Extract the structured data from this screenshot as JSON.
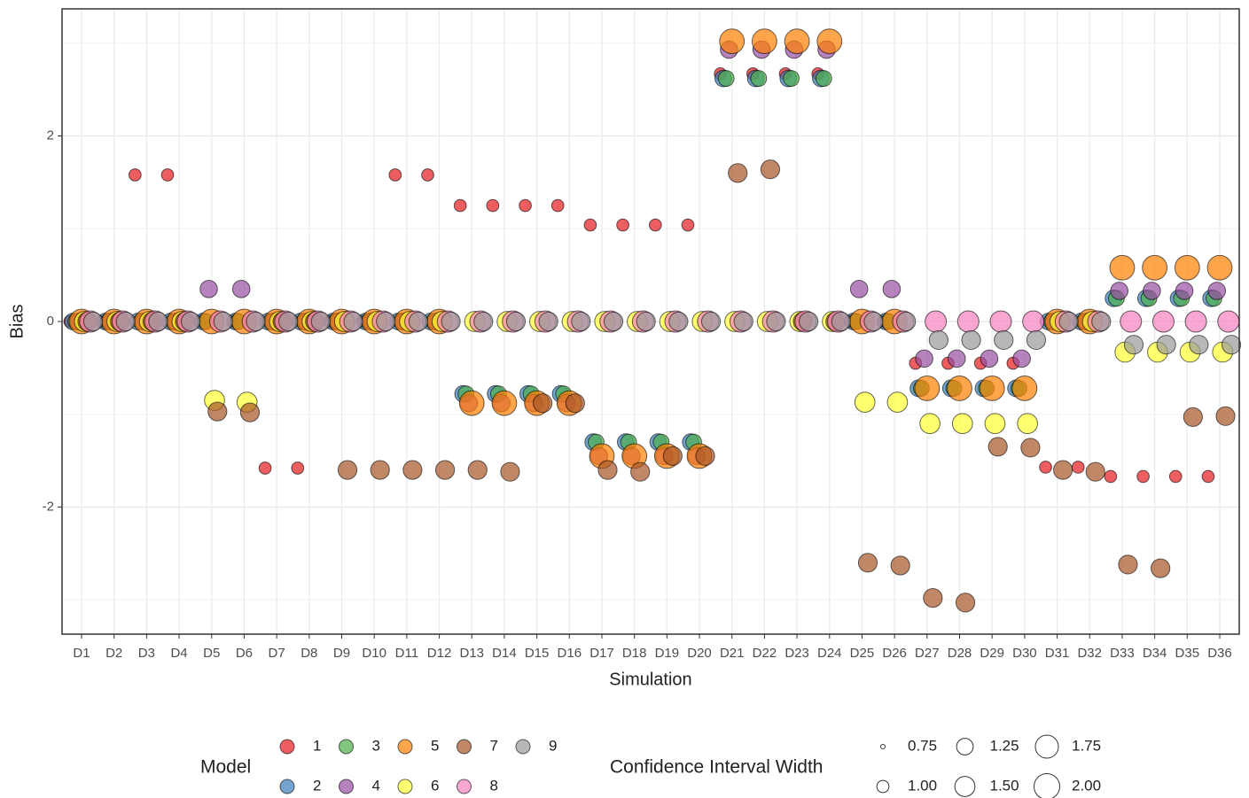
{
  "chart_data": {
    "type": "bubble",
    "x_label": "Simulation",
    "y_label": "Bias",
    "categories": [
      "D1",
      "D2",
      "D3",
      "D4",
      "D5",
      "D6",
      "D7",
      "D8",
      "D9",
      "D10",
      "D11",
      "D12",
      "D13",
      "D14",
      "D15",
      "D16",
      "D17",
      "D18",
      "D19",
      "D20",
      "D21",
      "D22",
      "D23",
      "D24",
      "D25",
      "D26",
      "D27",
      "D28",
      "D29",
      "D30",
      "D31",
      "D32",
      "D33",
      "D34",
      "D35",
      "D36"
    ],
    "ylim": [
      -3.37,
      3.37
    ],
    "yticks": [
      -2,
      0,
      2
    ],
    "y_minor_ticks": [
      -3,
      -1,
      1,
      3
    ],
    "grid": true,
    "legend_title": "Model",
    "size_legend_title": "Confidence Interval Width",
    "size_breaks": [
      0.75,
      1.0,
      1.25,
      1.5,
      1.75,
      2.0
    ],
    "size_labels": [
      "0.75",
      "1.00",
      "1.25",
      "1.50",
      "1.75",
      "2.00"
    ],
    "series": [
      {
        "name": "1",
        "color": "#e41a1c",
        "size": 1.0,
        "values": [
          0,
          0,
          1.58,
          1.58,
          0,
          0,
          -1.58,
          -1.58,
          0,
          0,
          1.58,
          1.58,
          1.25,
          1.25,
          1.25,
          1.25,
          1.04,
          1.04,
          1.04,
          1.04,
          2.67,
          2.67,
          2.67,
          2.67,
          0,
          0,
          -0.45,
          -0.45,
          -0.45,
          -0.45,
          -1.57,
          -1.57,
          -1.67,
          -1.67,
          -1.67,
          -1.67
        ]
      },
      {
        "name": "2",
        "color": "#377eb8",
        "size": 1.25,
        "values": [
          0,
          0,
          0,
          0,
          0,
          0,
          0,
          0,
          0,
          0,
          0,
          0,
          -0.78,
          -0.78,
          -0.78,
          -0.78,
          -1.3,
          -1.3,
          -1.3,
          -1.3,
          2.62,
          2.62,
          2.62,
          2.62,
          0,
          0,
          -0.72,
          -0.72,
          -0.72,
          -0.72,
          0,
          0,
          0.25,
          0.25,
          0.25,
          0.25
        ]
      },
      {
        "name": "3",
        "color": "#4daf4a",
        "size": 1.2,
        "values": [
          0,
          0,
          0,
          0,
          0,
          0,
          0,
          0,
          0,
          0,
          0,
          0,
          -0.78,
          -0.78,
          -0.78,
          -0.78,
          -1.3,
          -1.3,
          -1.3,
          -1.3,
          2.62,
          2.62,
          2.62,
          2.62,
          0,
          0,
          -0.72,
          -0.72,
          -0.72,
          -0.72,
          0,
          0,
          0.25,
          0.25,
          0.25,
          0.25
        ]
      },
      {
        "name": "4",
        "color": "#984ea3",
        "size": 1.3,
        "values": [
          0,
          0,
          0,
          0,
          0.35,
          0.35,
          0,
          0,
          0,
          0,
          0,
          0,
          -0.88,
          -0.88,
          -0.88,
          -0.88,
          -1.45,
          -1.45,
          -1.45,
          -1.45,
          2.93,
          2.93,
          2.93,
          2.93,
          0.35,
          0.35,
          -0.4,
          -0.4,
          -0.4,
          -0.4,
          0,
          0,
          0.33,
          0.33,
          0.33,
          0.33
        ]
      },
      {
        "name": "5",
        "color": "#ff7f00",
        "size": 1.9,
        "values": [
          0,
          0,
          0,
          0,
          0,
          0,
          0,
          0,
          0,
          0,
          0,
          0,
          -0.88,
          -0.88,
          -0.88,
          -0.88,
          -1.45,
          -1.45,
          -1.45,
          -1.45,
          3.02,
          3.02,
          3.02,
          3.02,
          0,
          0,
          -0.72,
          -0.72,
          -0.72,
          -0.72,
          0,
          0,
          0.58,
          0.58,
          0.58,
          0.58
        ]
      },
      {
        "name": "6",
        "color": "#ffff33",
        "size": 1.5,
        "values": [
          0,
          0,
          0,
          0,
          -0.85,
          -0.87,
          0,
          0,
          0,
          0,
          0,
          0,
          0,
          0,
          0,
          0,
          0,
          0,
          0,
          0,
          0,
          0,
          0,
          0,
          -0.87,
          -0.87,
          -1.1,
          -1.1,
          -1.1,
          -1.1,
          0,
          0,
          -0.33,
          -0.33,
          -0.33,
          -0.33
        ]
      },
      {
        "name": "7",
        "color": "#a65628",
        "size": 1.4,
        "values": [
          0,
          0,
          0,
          0,
          -0.97,
          -0.98,
          0,
          0,
          -1.6,
          -1.6,
          -1.6,
          -1.6,
          -1.6,
          -1.62,
          -0.88,
          -0.88,
          -1.6,
          -1.62,
          -1.45,
          -1.45,
          1.6,
          1.64,
          0,
          0,
          -2.6,
          -2.63,
          -2.98,
          -3.03,
          -1.35,
          -1.36,
          -1.6,
          -1.62,
          -2.62,
          -2.66,
          -1.03,
          -1.02
        ]
      },
      {
        "name": "8",
        "color": "#f781bf",
        "size": 1.6,
        "values": [
          0,
          0,
          0,
          0,
          0,
          0,
          0,
          0,
          0,
          0,
          0,
          0,
          0,
          0,
          0,
          0,
          0,
          0,
          0,
          0,
          0,
          0,
          0,
          0,
          0,
          0,
          0,
          0,
          0,
          0,
          0,
          0,
          0,
          0,
          0,
          0
        ]
      },
      {
        "name": "9",
        "color": "#999999",
        "size": 1.4,
        "values": [
          0,
          0,
          0,
          0,
          0,
          0,
          0,
          0,
          0,
          0,
          0,
          0,
          0,
          0,
          0,
          0,
          0,
          0,
          0,
          0,
          0,
          0,
          0,
          0,
          0,
          0,
          -0.2,
          -0.2,
          -0.2,
          -0.2,
          0,
          0,
          -0.25,
          -0.25,
          -0.25,
          -0.25
        ]
      }
    ]
  }
}
